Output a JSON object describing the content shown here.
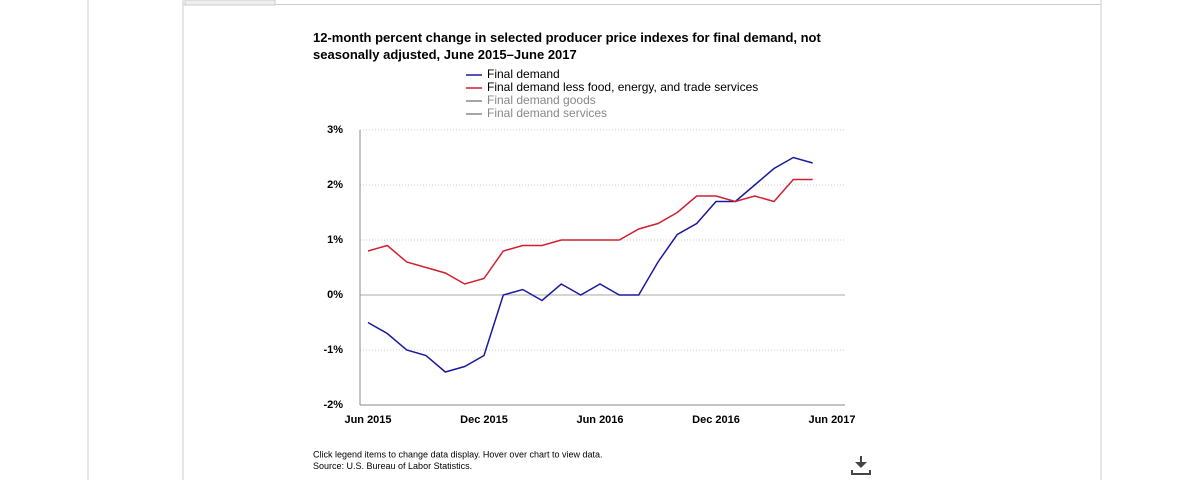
{
  "chart_data": {
    "type": "line",
    "title": "12-month percent change in selected producer price indexes for final demand, not seasonally adjusted, June 2015–June 2017",
    "categories": [
      "Jun 2015",
      null,
      null,
      null,
      null,
      null,
      "Dec 2015",
      null,
      null,
      null,
      null,
      null,
      "Jun 2016",
      null,
      null,
      null,
      null,
      null,
      "Dec 2016",
      null,
      null,
      null,
      null,
      null,
      "Jun 2017"
    ],
    "series": [
      {
        "name": "Final demand",
        "color": "#1a1aa0",
        "values": [
          -0.5,
          -0.7,
          -1.0,
          -1.1,
          -1.4,
          -1.3,
          -1.1,
          0.0,
          0.1,
          -0.1,
          0.2,
          0.0,
          0.2,
          0.0,
          0.0,
          0.6,
          1.1,
          1.3,
          1.7,
          1.7,
          2.0,
          2.3,
          2.5,
          2.4,
          null
        ]
      },
      {
        "name": "Final demand less food, energy, and trade services",
        "color": "#d02030",
        "values": [
          0.8,
          0.9,
          0.6,
          0.5,
          0.4,
          0.2,
          0.3,
          0.8,
          0.9,
          0.9,
          1.0,
          1.0,
          1.0,
          1.0,
          1.2,
          1.3,
          1.5,
          1.8,
          1.8,
          1.7,
          1.8,
          1.7,
          2.1,
          2.1,
          null
        ]
      }
    ],
    "inactive_series": [
      {
        "name": "Final demand goods",
        "color": "#888888"
      },
      {
        "name": "Final demand services",
        "color": "#888888"
      }
    ],
    "ylim": [
      -2,
      3
    ],
    "yticks": [
      {
        "value": -2,
        "label": "-2%"
      },
      {
        "value": -1,
        "label": "-1%"
      },
      {
        "value": 0,
        "label": "0%"
      },
      {
        "value": 1,
        "label": "1%"
      },
      {
        "value": 2,
        "label": "2%"
      },
      {
        "value": 3,
        "label": "3%"
      }
    ],
    "grid": true,
    "notes": [
      "Click legend items to change data display. Hover over chart to view data.",
      "Source: U.S. Bureau of Labor Statistics."
    ]
  }
}
